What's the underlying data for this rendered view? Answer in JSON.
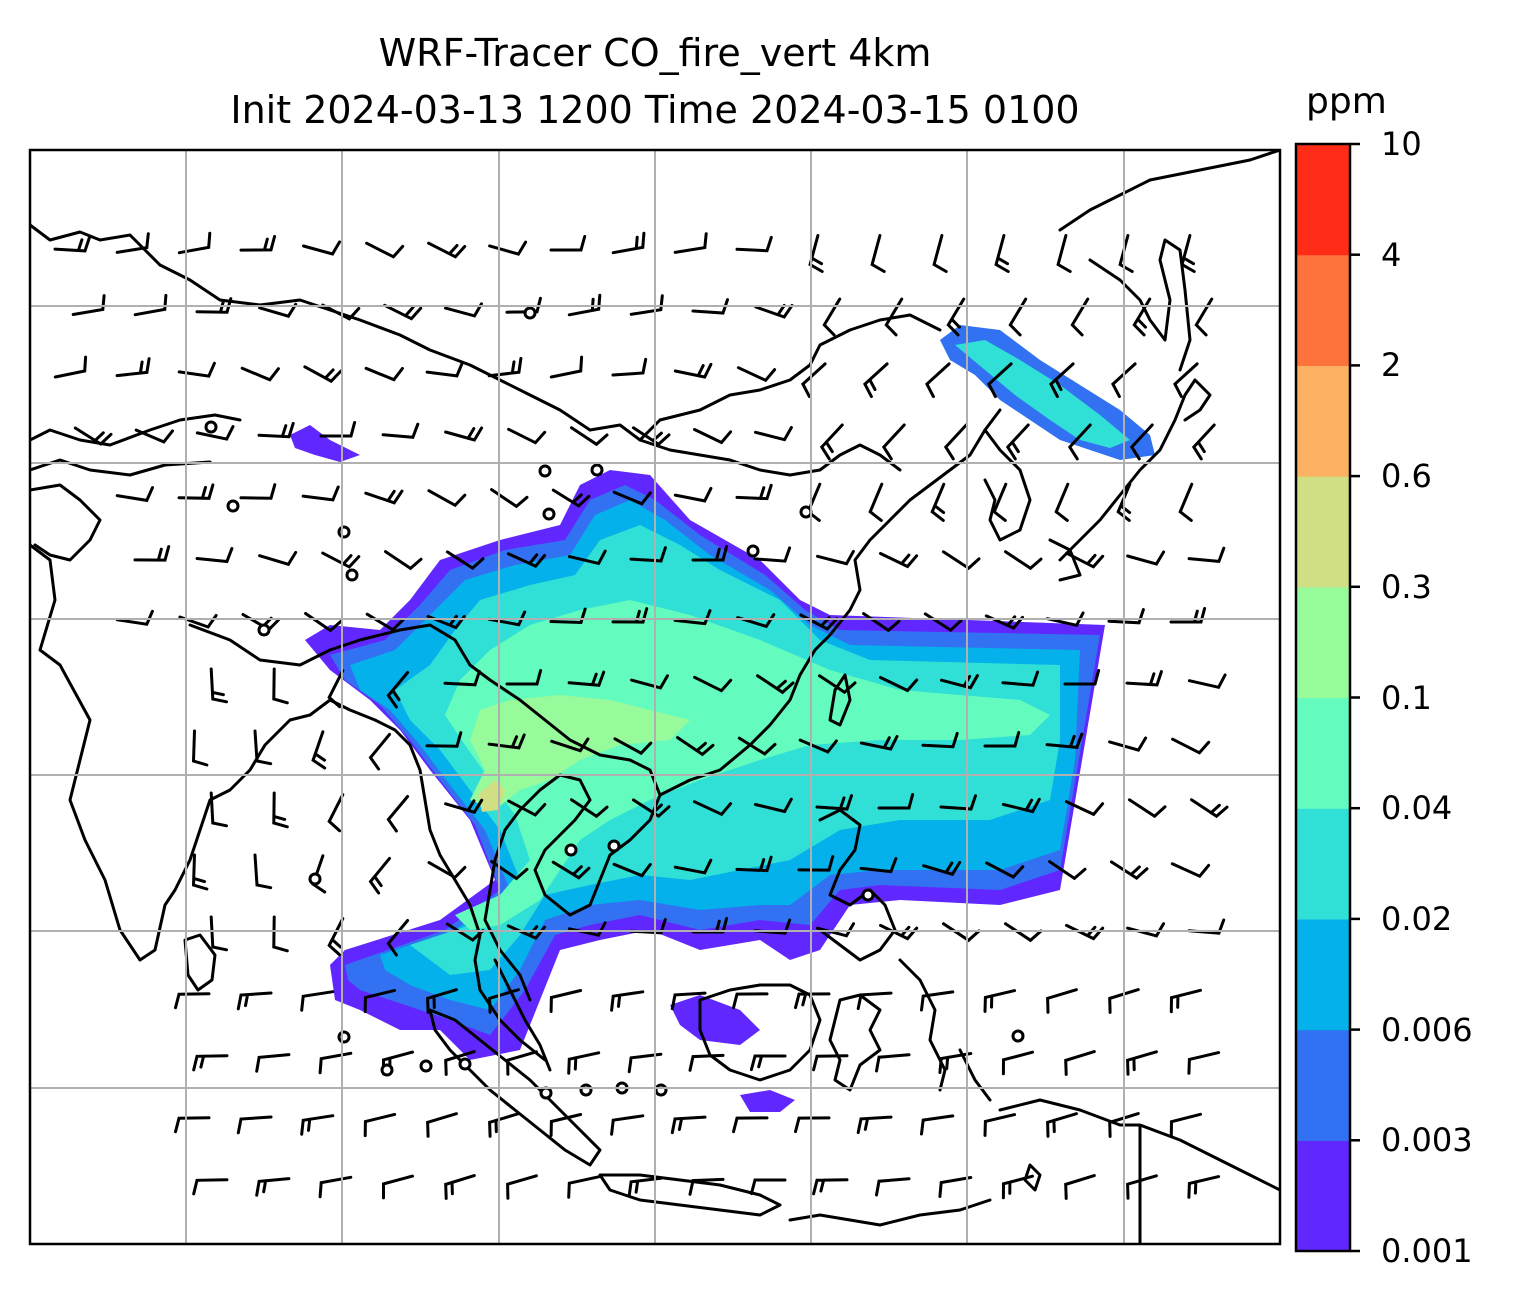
{
  "title": {
    "line1": "WRF-Tracer CO_fire_vert 4km",
    "line2": "Init 2024-03-13 1200 Time 2024-03-15 0100"
  },
  "colorbar": {
    "unit": "ppm",
    "levels": [
      "0.001",
      "0.003",
      "0.006",
      "0.02",
      "0.04",
      "0.1",
      "0.3",
      "0.6",
      "2",
      "4",
      "10"
    ],
    "colors": [
      "#6127ff",
      "#3272f2",
      "#04b1ea",
      "#30dfd6",
      "#64fbbe",
      "#97fa9b",
      "#d0df83",
      "#fcb262",
      "#fe733c",
      "#ff2d17"
    ]
  },
  "map": {
    "coastline_color": "#000000",
    "gridline_color": "#b0b0b0",
    "barb_color": "#000000"
  }
}
